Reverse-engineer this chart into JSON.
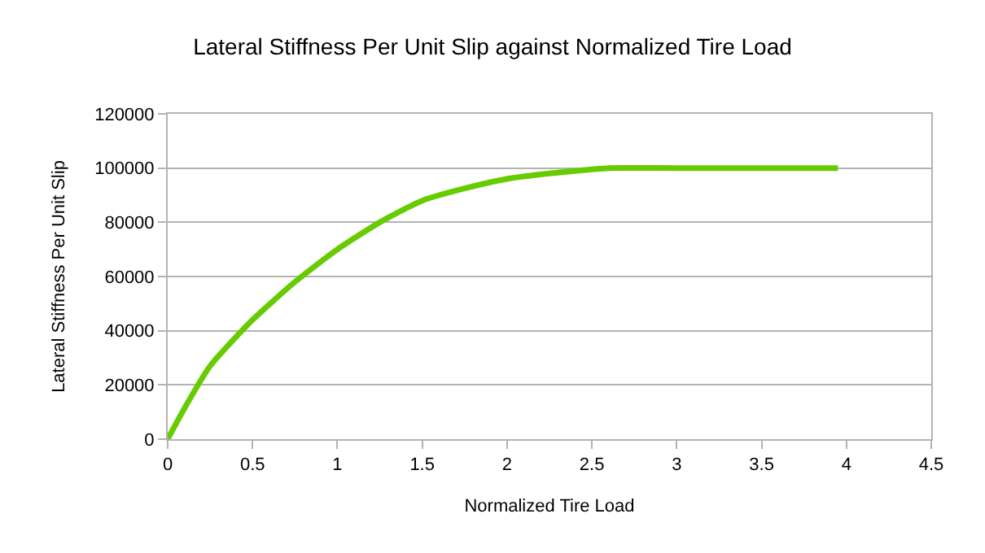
{
  "chart_data": {
    "type": "line",
    "title": "Lateral Stiffness Per Unit Slip against Normalized Tire Load",
    "xlabel": "Normalized Tire Load",
    "ylabel": "Lateral Stiffness Per Unit Slip",
    "x": [
      0,
      0.1,
      0.25,
      0.5,
      0.75,
      1,
      1.25,
      1.5,
      1.75,
      2,
      2.25,
      2.5,
      2.6,
      3,
      3.5,
      3.95
    ],
    "series": [
      {
        "color": "#66cc00",
        "values": [
          0,
          11500,
          27000,
          44000,
          58000,
          70000,
          80000,
          88000,
          92500,
          96000,
          98000,
          99500,
          100000,
          100000,
          100000,
          100000
        ]
      }
    ],
    "xlim": [
      0,
      4.5
    ],
    "xticks": [
      0,
      {
        "value": 0.5,
        "label": "0.5"
      },
      1,
      {
        "value": 1.5,
        "label": "1.5"
      },
      2,
      {
        "value": 2.5,
        "label": "2.5"
      },
      3,
      {
        "value": 3.5,
        "label": "3.5"
      },
      4,
      {
        "value": 4.5,
        "label": "4.5"
      }
    ],
    "ylim": [
      0,
      120000
    ],
    "yticks": [
      0,
      20000,
      40000,
      60000,
      80000,
      100000,
      120000
    ],
    "grid": "y",
    "legend": false,
    "marker": "none",
    "line_style": "solid"
  }
}
